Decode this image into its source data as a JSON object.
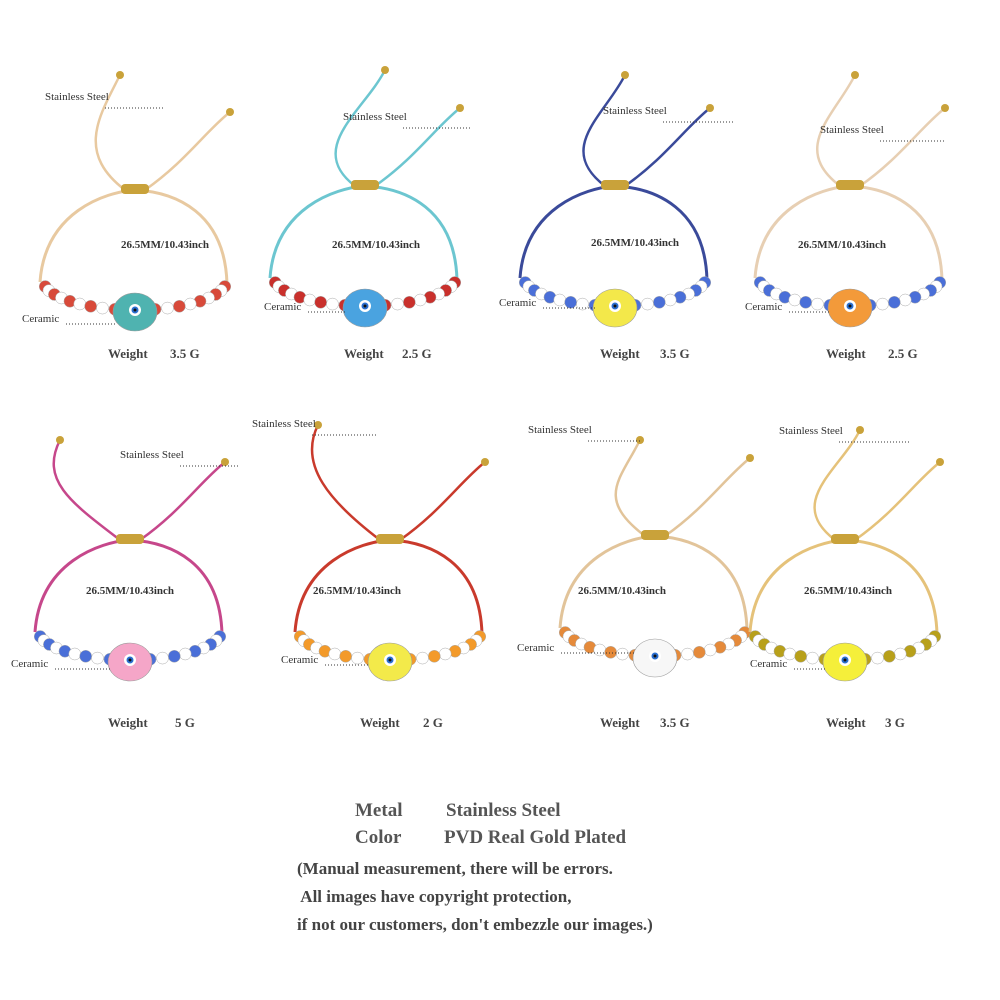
{
  "products": [
    {
      "steel_label": "Stainless Steel",
      "size": "26.5MM/10.43inch",
      "ceramic_label": "Ceramic",
      "weight_label": "Weight",
      "weight": "3.5  G"
    },
    {
      "steel_label": "Stainless Steel",
      "size": "26.5MM/10.43inch",
      "ceramic_label": "Ceramic",
      "weight_label": "Weight",
      "weight": "2.5  G"
    },
    {
      "steel_label": "Stainless Steel",
      "size": "26.5MM/10.43inch",
      "ceramic_label": "Ceramic",
      "weight_label": "Weight",
      "weight": "3.5  G"
    },
    {
      "steel_label": "Stainless Steel",
      "size": "26.5MM/10.43inch",
      "ceramic_label": "Ceramic",
      "weight_label": "Weight",
      "weight": "2.5  G"
    },
    {
      "steel_label": "Stainless Steel",
      "size": "26.5MM/10.43inch",
      "ceramic_label": "Ceramic",
      "weight_label": "Weight",
      "weight": "5  G"
    },
    {
      "steel_label": "Stainless Steel",
      "size": "26.5MM/10.43inch",
      "ceramic_label": "Ceramic",
      "weight_label": "Weight",
      "weight": "2  G"
    },
    {
      "steel_label": "Stainless Steel",
      "size": "26.5MM/10.43inch",
      "ceramic_label": "Ceramic",
      "weight_label": "Weight",
      "weight": "3.5  G"
    },
    {
      "steel_label": "Stainless Steel",
      "size": "26.5MM/10.43inch",
      "ceramic_label": "Ceramic",
      "weight_label": "Weight",
      "weight": "3  G"
    }
  ],
  "specs": [
    {
      "label": "Metal",
      "value": "Stainless Steel"
    },
    {
      "label": "Color",
      "value": "PVD Real Gold Plated"
    }
  ],
  "notes": [
    "(Manual measurement, there will be errors.",
    " All images have copyright protection,",
    "if not our customers, don't embezzle our images.)"
  ]
}
